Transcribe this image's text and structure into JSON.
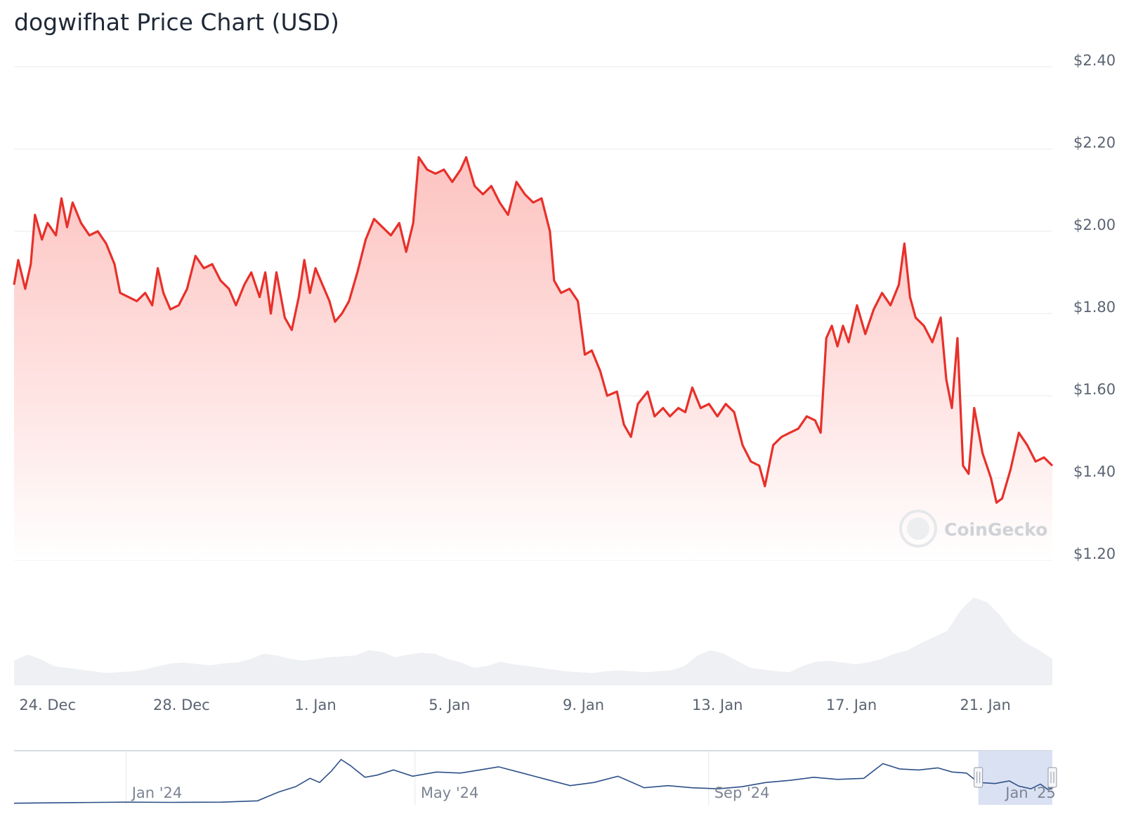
{
  "title": "dogwifhat Price Chart (USD)",
  "watermark": "CoinGecko",
  "colors": {
    "price_line": "#e8302a",
    "area_top": "#fcb9b6",
    "grid": "#e9ebee",
    "volume": "#eef0f3",
    "navigator_line": "#2d5088",
    "navigator_selection": "#d6def2"
  },
  "chart_data": {
    "type": "line",
    "title": "dogwifhat Price Chart (USD)",
    "xlabel": "",
    "ylabel": "",
    "ylim": [
      1.2,
      2.4
    ],
    "y_ticks": [
      {
        "value": 2.4,
        "label": "$2.40"
      },
      {
        "value": 2.2,
        "label": "$2.20"
      },
      {
        "value": 2.0,
        "label": "$2.00"
      },
      {
        "value": 1.8,
        "label": "$1.80"
      },
      {
        "value": 1.6,
        "label": "$1.60"
      },
      {
        "value": 1.4,
        "label": "$1.40"
      },
      {
        "value": 1.2,
        "label": "$1.20"
      }
    ],
    "x_range": [
      "2024-12-23",
      "2025-01-23"
    ],
    "x_ticks": [
      {
        "date": "2024-12-24",
        "label": "24. Dec"
      },
      {
        "date": "2024-12-28",
        "label": "28. Dec"
      },
      {
        "date": "2025-01-01",
        "label": "1. Jan"
      },
      {
        "date": "2025-01-05",
        "label": "5. Jan"
      },
      {
        "date": "2025-01-09",
        "label": "9. Jan"
      },
      {
        "date": "2025-01-13",
        "label": "13. Jan"
      },
      {
        "date": "2025-01-17",
        "label": "17. Jan"
      },
      {
        "date": "2025-01-21",
        "label": "21. Jan"
      }
    ],
    "grid": true,
    "series": [
      {
        "values": [
          [
            "2024-12-23 00:00",
            1.87
          ],
          [
            "2024-12-23 03:00",
            1.93
          ],
          [
            "2024-12-23 08:00",
            1.86
          ],
          [
            "2024-12-23 12:00",
            1.92
          ],
          [
            "2024-12-23 15:00",
            2.04
          ],
          [
            "2024-12-23 20:00",
            1.98
          ],
          [
            "2024-12-24 00:00",
            2.02
          ],
          [
            "2024-12-24 06:00",
            1.99
          ],
          [
            "2024-12-24 10:00",
            2.08
          ],
          [
            "2024-12-24 14:00",
            2.01
          ],
          [
            "2024-12-24 18:00",
            2.07
          ],
          [
            "2024-12-25 00:00",
            2.02
          ],
          [
            "2024-12-25 06:00",
            1.99
          ],
          [
            "2024-12-25 12:00",
            2.0
          ],
          [
            "2024-12-25 18:00",
            1.97
          ],
          [
            "2024-12-26 00:00",
            1.92
          ],
          [
            "2024-12-26 04:00",
            1.85
          ],
          [
            "2024-12-26 10:00",
            1.84
          ],
          [
            "2024-12-26 16:00",
            1.83
          ],
          [
            "2024-12-26 22:00",
            1.85
          ],
          [
            "2024-12-27 03:00",
            1.82
          ],
          [
            "2024-12-27 07:00",
            1.91
          ],
          [
            "2024-12-27 11:00",
            1.85
          ],
          [
            "2024-12-27 16:00",
            1.81
          ],
          [
            "2024-12-27 22:00",
            1.82
          ],
          [
            "2024-12-28 04:00",
            1.86
          ],
          [
            "2024-12-28 10:00",
            1.94
          ],
          [
            "2024-12-28 16:00",
            1.91
          ],
          [
            "2024-12-28 22:00",
            1.92
          ],
          [
            "2024-12-29 04:00",
            1.88
          ],
          [
            "2024-12-29 10:00",
            1.86
          ],
          [
            "2024-12-29 15:00",
            1.82
          ],
          [
            "2024-12-29 21:00",
            1.87
          ],
          [
            "2024-12-30 02:00",
            1.9
          ],
          [
            "2024-12-30 08:00",
            1.84
          ],
          [
            "2024-12-30 12:00",
            1.9
          ],
          [
            "2024-12-30 16:00",
            1.8
          ],
          [
            "2024-12-30 20:00",
            1.9
          ],
          [
            "2024-12-31 02:00",
            1.79
          ],
          [
            "2024-12-31 07:00",
            1.76
          ],
          [
            "2024-12-31 12:00",
            1.84
          ],
          [
            "2024-12-31 16:00",
            1.93
          ],
          [
            "2024-12-31 20:00",
            1.85
          ],
          [
            "2025-01-01 00:00",
            1.91
          ],
          [
            "2025-01-01 05:00",
            1.87
          ],
          [
            "2025-01-01 10:00",
            1.83
          ],
          [
            "2025-01-01 14:00",
            1.78
          ],
          [
            "2025-01-01 19:00",
            1.8
          ],
          [
            "2025-01-02 00:00",
            1.83
          ],
          [
            "2025-01-02 06:00",
            1.9
          ],
          [
            "2025-01-02 12:00",
            1.98
          ],
          [
            "2025-01-02 18:00",
            2.03
          ],
          [
            "2025-01-03 00:00",
            2.01
          ],
          [
            "2025-01-03 06:00",
            1.99
          ],
          [
            "2025-01-03 12:00",
            2.02
          ],
          [
            "2025-01-03 17:00",
            1.95
          ],
          [
            "2025-01-03 22:00",
            2.02
          ],
          [
            "2025-01-04 02:00",
            2.18
          ],
          [
            "2025-01-04 08:00",
            2.15
          ],
          [
            "2025-01-04 14:00",
            2.14
          ],
          [
            "2025-01-04 20:00",
            2.15
          ],
          [
            "2025-01-05 02:00",
            2.12
          ],
          [
            "2025-01-05 08:00",
            2.15
          ],
          [
            "2025-01-05 12:00",
            2.18
          ],
          [
            "2025-01-05 18:00",
            2.11
          ],
          [
            "2025-01-06 00:00",
            2.09
          ],
          [
            "2025-01-06 06:00",
            2.11
          ],
          [
            "2025-01-06 12:00",
            2.07
          ],
          [
            "2025-01-06 18:00",
            2.04
          ],
          [
            "2025-01-07 00:00",
            2.12
          ],
          [
            "2025-01-07 06:00",
            2.09
          ],
          [
            "2025-01-07 12:00",
            2.07
          ],
          [
            "2025-01-07 18:00",
            2.08
          ],
          [
            "2025-01-08 00:00",
            2.0
          ],
          [
            "2025-01-08 03:00",
            1.88
          ],
          [
            "2025-01-08 08:00",
            1.85
          ],
          [
            "2025-01-08 14:00",
            1.86
          ],
          [
            "2025-01-08 20:00",
            1.83
          ],
          [
            "2025-01-09 01:00",
            1.7
          ],
          [
            "2025-01-09 06:00",
            1.71
          ],
          [
            "2025-01-09 12:00",
            1.66
          ],
          [
            "2025-01-09 17:00",
            1.6
          ],
          [
            "2025-01-10 00:00",
            1.61
          ],
          [
            "2025-01-10 05:00",
            1.53
          ],
          [
            "2025-01-10 10:00",
            1.5
          ],
          [
            "2025-01-10 15:00",
            1.58
          ],
          [
            "2025-01-10 22:00",
            1.61
          ],
          [
            "2025-01-11 03:00",
            1.55
          ],
          [
            "2025-01-11 09:00",
            1.57
          ],
          [
            "2025-01-11 14:00",
            1.55
          ],
          [
            "2025-01-11 20:00",
            1.57
          ],
          [
            "2025-01-12 01:00",
            1.56
          ],
          [
            "2025-01-12 06:00",
            1.62
          ],
          [
            "2025-01-12 12:00",
            1.57
          ],
          [
            "2025-01-12 18:00",
            1.58
          ],
          [
            "2025-01-13 00:00",
            1.55
          ],
          [
            "2025-01-13 06:00",
            1.58
          ],
          [
            "2025-01-13 12:00",
            1.56
          ],
          [
            "2025-01-13 18:00",
            1.48
          ],
          [
            "2025-01-14 00:00",
            1.44
          ],
          [
            "2025-01-14 06:00",
            1.43
          ],
          [
            "2025-01-14 10:00",
            1.38
          ],
          [
            "2025-01-14 16:00",
            1.48
          ],
          [
            "2025-01-14 22:00",
            1.5
          ],
          [
            "2025-01-15 04:00",
            1.51
          ],
          [
            "2025-01-15 10:00",
            1.52
          ],
          [
            "2025-01-15 16:00",
            1.55
          ],
          [
            "2025-01-15 22:00",
            1.54
          ],
          [
            "2025-01-16 02:00",
            1.51
          ],
          [
            "2025-01-16 06:00",
            1.74
          ],
          [
            "2025-01-16 10:00",
            1.77
          ],
          [
            "2025-01-16 14:00",
            1.72
          ],
          [
            "2025-01-16 18:00",
            1.77
          ],
          [
            "2025-01-16 22:00",
            1.73
          ],
          [
            "2025-01-17 04:00",
            1.82
          ],
          [
            "2025-01-17 10:00",
            1.75
          ],
          [
            "2025-01-17 16:00",
            1.81
          ],
          [
            "2025-01-17 22:00",
            1.85
          ],
          [
            "2025-01-18 04:00",
            1.82
          ],
          [
            "2025-01-18 10:00",
            1.87
          ],
          [
            "2025-01-18 14:00",
            1.97
          ],
          [
            "2025-01-18 18:00",
            1.84
          ],
          [
            "2025-01-18 22:00",
            1.79
          ],
          [
            "2025-01-19 04:00",
            1.77
          ],
          [
            "2025-01-19 10:00",
            1.73
          ],
          [
            "2025-01-19 16:00",
            1.79
          ],
          [
            "2025-01-19 20:00",
            1.64
          ],
          [
            "2025-01-20 00:00",
            1.57
          ],
          [
            "2025-01-20 04:00",
            1.74
          ],
          [
            "2025-01-20 08:00",
            1.43
          ],
          [
            "2025-01-20 12:00",
            1.41
          ],
          [
            "2025-01-20 16:00",
            1.57
          ],
          [
            "2025-01-20 22:00",
            1.46
          ],
          [
            "2025-01-21 04:00",
            1.4
          ],
          [
            "2025-01-21 08:00",
            1.34
          ],
          [
            "2025-01-21 12:00",
            1.35
          ],
          [
            "2025-01-21 18:00",
            1.42
          ],
          [
            "2025-01-22 00:00",
            1.51
          ],
          [
            "2025-01-22 06:00",
            1.48
          ],
          [
            "2025-01-22 12:00",
            1.44
          ],
          [
            "2025-01-22 18:00",
            1.45
          ],
          [
            "2025-01-23 00:00",
            1.43
          ]
        ]
      }
    ],
    "volume": {
      "x_range": [
        "2024-12-23",
        "2025-01-23"
      ],
      "values": [
        0.28,
        0.35,
        0.3,
        0.22,
        0.2,
        0.18,
        0.16,
        0.14,
        0.15,
        0.16,
        0.18,
        0.22,
        0.25,
        0.26,
        0.24,
        0.23,
        0.25,
        0.26,
        0.3,
        0.36,
        0.34,
        0.3,
        0.28,
        0.3,
        0.32,
        0.33,
        0.34,
        0.4,
        0.38,
        0.32,
        0.35,
        0.37,
        0.36,
        0.3,
        0.26,
        0.2,
        0.22,
        0.27,
        0.24,
        0.22,
        0.2,
        0.18,
        0.16,
        0.15,
        0.14,
        0.16,
        0.17,
        0.16,
        0.15,
        0.16,
        0.17,
        0.22,
        0.34,
        0.4,
        0.36,
        0.28,
        0.2,
        0.18,
        0.16,
        0.15,
        0.22,
        0.27,
        0.28,
        0.26,
        0.24,
        0.26,
        0.3,
        0.36,
        0.4,
        0.48,
        0.55,
        0.62,
        0.85,
        1.0,
        0.95,
        0.8,
        0.6,
        0.48,
        0.4,
        0.3
      ]
    }
  },
  "navigator": {
    "labels": [
      {
        "date": "2024-01-01",
        "label": "Jan '24"
      },
      {
        "date": "2024-05-01",
        "label": "May '24"
      },
      {
        "date": "2024-09-01",
        "label": "Sep '24"
      },
      {
        "date": "2025-01-01",
        "label": "Jan '25"
      }
    ],
    "x_range": [
      "2023-11-15",
      "2025-01-23"
    ],
    "selection": [
      "2024-12-23",
      "2025-01-23"
    ],
    "ylim": [
      0,
      4.5
    ],
    "values": [
      [
        "2023-11-15",
        0.02
      ],
      [
        "2023-12-10",
        0.08
      ],
      [
        "2024-01-01",
        0.12
      ],
      [
        "2024-01-20",
        0.1
      ],
      [
        "2024-02-10",
        0.12
      ],
      [
        "2024-02-25",
        0.25
      ],
      [
        "2024-03-05",
        1.1
      ],
      [
        "2024-03-12",
        1.6
      ],
      [
        "2024-03-18",
        2.4
      ],
      [
        "2024-03-22",
        2.0
      ],
      [
        "2024-03-27",
        3.1
      ],
      [
        "2024-03-31",
        4.2
      ],
      [
        "2024-04-04",
        3.6
      ],
      [
        "2024-04-10",
        2.5
      ],
      [
        "2024-04-15",
        2.7
      ],
      [
        "2024-04-22",
        3.2
      ],
      [
        "2024-04-30",
        2.6
      ],
      [
        "2024-05-10",
        3.0
      ],
      [
        "2024-05-20",
        2.9
      ],
      [
        "2024-05-28",
        3.2
      ],
      [
        "2024-06-05",
        3.5
      ],
      [
        "2024-06-15",
        2.9
      ],
      [
        "2024-06-25",
        2.3
      ],
      [
        "2024-07-05",
        1.7
      ],
      [
        "2024-07-15",
        2.0
      ],
      [
        "2024-07-25",
        2.6
      ],
      [
        "2024-08-05",
        1.5
      ],
      [
        "2024-08-15",
        1.7
      ],
      [
        "2024-08-25",
        1.5
      ],
      [
        "2024-09-05",
        1.4
      ],
      [
        "2024-09-15",
        1.6
      ],
      [
        "2024-09-25",
        2.0
      ],
      [
        "2024-10-05",
        2.2
      ],
      [
        "2024-10-15",
        2.5
      ],
      [
        "2024-10-25",
        2.3
      ],
      [
        "2024-11-05",
        2.4
      ],
      [
        "2024-11-13",
        3.8
      ],
      [
        "2024-11-20",
        3.3
      ],
      [
        "2024-11-28",
        3.2
      ],
      [
        "2024-12-06",
        3.4
      ],
      [
        "2024-12-12",
        3.0
      ],
      [
        "2024-12-18",
        2.9
      ],
      [
        "2024-12-23",
        2.0
      ],
      [
        "2024-12-30",
        1.9
      ],
      [
        "2025-01-05",
        2.15
      ],
      [
        "2025-01-09",
        1.65
      ],
      [
        "2025-01-14",
        1.4
      ],
      [
        "2025-01-18",
        1.85
      ],
      [
        "2025-01-21",
        1.35
      ],
      [
        "2025-01-23",
        1.43
      ]
    ]
  }
}
